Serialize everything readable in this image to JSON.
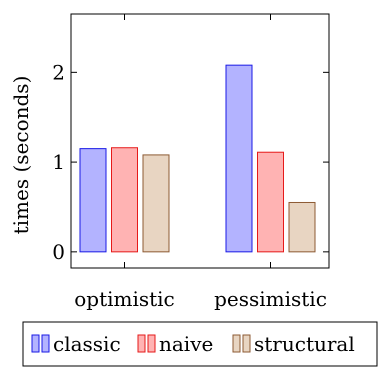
{
  "chart_data": {
    "type": "bar",
    "categories": [
      "optimistic",
      "pessimistic"
    ],
    "series": [
      {
        "name": "classic",
        "values": [
          1.15,
          2.08
        ],
        "color": "#b3b3ff",
        "stroke": "#1a1ae6"
      },
      {
        "name": "naive",
        "values": [
          1.16,
          1.11
        ],
        "color": "#ffb3b3",
        "stroke": "#e61a1a"
      },
      {
        "name": "structural",
        "values": [
          1.08,
          0.55
        ],
        "color": "#e8d5c2",
        "stroke": "#8c5a33"
      }
    ],
    "yticks": [
      0,
      1,
      2
    ],
    "ylim": [
      -0.18,
      2.65
    ],
    "ylabel": "times (seconds)",
    "xlabel": "",
    "title": "",
    "grid": false,
    "legend_position": "bottom"
  }
}
